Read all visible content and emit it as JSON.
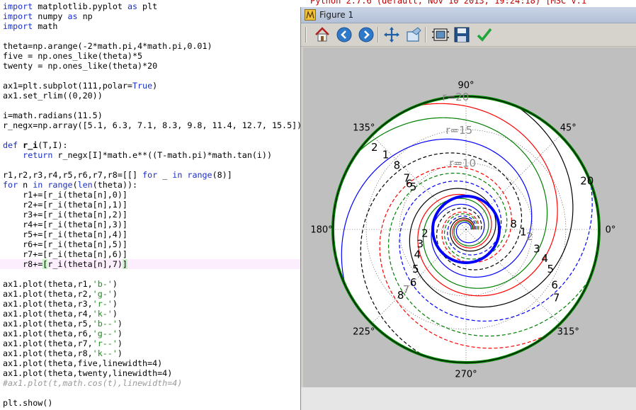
{
  "editor": {
    "lines": [
      {
        "t": "import matplotlib.pyplot as plt",
        "kind": "import"
      },
      {
        "t": "import numpy as np",
        "kind": "import"
      },
      {
        "t": "import math",
        "kind": "import"
      },
      {
        "t": "",
        "kind": "plain"
      },
      {
        "t": "theta=np.arange(-2*math.pi,4*math.pi,0.01)",
        "kind": "plain"
      },
      {
        "t": "five = np.ones_like(theta)*5",
        "kind": "plain"
      },
      {
        "t": "twenty = np.ones_like(theta)*20",
        "kind": "plain"
      },
      {
        "t": "",
        "kind": "plain"
      },
      {
        "t": "ax1=plt.subplot(111,polar=True)",
        "kind": "polar"
      },
      {
        "t": "ax1.set_rlim((0,20))",
        "kind": "plain"
      },
      {
        "t": "",
        "kind": "plain"
      },
      {
        "t": "i=math.radians(11.5)",
        "kind": "plain"
      },
      {
        "t": "r_negx=np.array([5.1, 6.3, 7.1, 8.3, 9.8, 11.4, 12.7, 15.5])",
        "kind": "plain"
      },
      {
        "t": "",
        "kind": "plain"
      },
      {
        "t": "def r_i(T,I):",
        "kind": "def"
      },
      {
        "t": "    return r_negx[I]*math.e**((T-math.pi)*math.tan(i))",
        "kind": "return"
      },
      {
        "t": "",
        "kind": "plain"
      },
      {
        "t": "r1,r2,r3,r4,r5,r6,r7,r8=[[] for _ in range(8)]",
        "kind": "comp"
      },
      {
        "t": "for n in range(len(theta)):",
        "kind": "for"
      },
      {
        "t": "    r1+=[r_i(theta[n],0)]",
        "kind": "plain"
      },
      {
        "t": "    r2+=[r_i(theta[n],1)]",
        "kind": "plain"
      },
      {
        "t": "    r3+=[r_i(theta[n],2)]",
        "kind": "plain"
      },
      {
        "t": "    r4+=[r_i(theta[n],3)]",
        "kind": "plain"
      },
      {
        "t": "    r5+=[r_i(theta[n],4)]",
        "kind": "plain"
      },
      {
        "t": "    r6+=[r_i(theta[n],5)]",
        "kind": "plain"
      },
      {
        "t": "    r7+=[r_i(theta[n],6)]",
        "kind": "plain"
      },
      {
        "t": "    r8+=[r_i(theta[n],7)]",
        "kind": "current"
      },
      {
        "t": "",
        "kind": "plain"
      },
      {
        "t": "ax1.plot(theta,r1,'b-')",
        "kind": "plot"
      },
      {
        "t": "ax1.plot(theta,r2,'g-')",
        "kind": "plot"
      },
      {
        "t": "ax1.plot(theta,r3,'r-')",
        "kind": "plot"
      },
      {
        "t": "ax1.plot(theta,r4,'k-')",
        "kind": "plot"
      },
      {
        "t": "ax1.plot(theta,r5,'b--')",
        "kind": "plot"
      },
      {
        "t": "ax1.plot(theta,r6,'g--')",
        "kind": "plot"
      },
      {
        "t": "ax1.plot(theta,r7,'r--')",
        "kind": "plot"
      },
      {
        "t": "ax1.plot(theta,r8,'k--')",
        "kind": "plot"
      },
      {
        "t": "ax1.plot(theta,five,linewidth=4)",
        "kind": "plain"
      },
      {
        "t": "ax1.plot(theta,twenty,linewidth=4)",
        "kind": "plain"
      },
      {
        "t": "#ax1.plot(t,math.cos(t),linewidth=4)",
        "kind": "comment"
      },
      {
        "t": "",
        "kind": "plain"
      },
      {
        "t": "plt.show()",
        "kind": "plain"
      }
    ]
  },
  "shell_strip_text": "Python 2.7.6 (default, Nov 10 2013, 19:24:18) [MSC v.1",
  "figure_window": {
    "title": "Figure 1",
    "toolbar": [
      {
        "name": "home-button",
        "icon": "home-icon"
      },
      {
        "name": "back-button",
        "icon": "back-arrow-icon"
      },
      {
        "name": "forward-button",
        "icon": "forward-arrow-icon"
      },
      {
        "name": "pan-button",
        "icon": "pan-icon"
      },
      {
        "name": "zoom-button",
        "icon": "zoom-rect-icon"
      },
      {
        "name": "configure-subplots-button",
        "icon": "subplots-icon"
      },
      {
        "name": "save-button",
        "icon": "save-icon"
      },
      {
        "name": "edit-axes-button",
        "icon": "checkmark-icon"
      }
    ]
  },
  "chart_data": {
    "type": "line",
    "projection": "polar",
    "rlim": [
      0,
      20
    ],
    "radial_ticks": [
      {
        "r": 10,
        "label": "r=10"
      },
      {
        "r": 15,
        "label": "r=15"
      },
      {
        "r": 20,
        "label": "r=20"
      }
    ],
    "angle_labels": [
      "0°",
      "45°",
      "90°",
      "135°",
      "180°",
      "225°",
      "270°",
      "315°"
    ],
    "grid": true,
    "theta_range": [
      -6.2832,
      12.5664
    ],
    "pitch_deg": 11.5,
    "series": [
      {
        "style": "b-",
        "color": "#0000ff",
        "dash": false,
        "r_negx": 5.1
      },
      {
        "style": "g-",
        "color": "#008000",
        "dash": false,
        "r_negx": 6.3
      },
      {
        "style": "r-",
        "color": "#ff0000",
        "dash": false,
        "r_negx": 7.1
      },
      {
        "style": "k-",
        "color": "#000000",
        "dash": false,
        "r_negx": 8.3
      },
      {
        "style": "b--",
        "color": "#0000ff",
        "dash": true,
        "r_negx": 9.8
      },
      {
        "style": "g--",
        "color": "#008000",
        "dash": true,
        "r_negx": 11.4
      },
      {
        "style": "r--",
        "color": "#ff0000",
        "dash": true,
        "r_negx": 12.7
      },
      {
        "style": "k--",
        "color": "#000000",
        "dash": true,
        "r_negx": 15.5
      }
    ],
    "circles": [
      {
        "r": 5,
        "color": "#0000ff",
        "width": 4
      },
      {
        "r": 20,
        "color": "#008000",
        "width": 4
      }
    ],
    "annotations": [
      {
        "text": "2",
        "angle_deg": 138,
        "r": 18.5,
        "color": "#000000"
      },
      {
        "text": "1",
        "angle_deg": 137,
        "r": 16.5,
        "color": "#000000"
      },
      {
        "text": "8",
        "angle_deg": 137,
        "r": 14.2,
        "color": "#000000"
      },
      {
        "text": "7",
        "angle_deg": 139,
        "r": 11.8,
        "color": "#000000"
      },
      {
        "text": "6",
        "angle_deg": 141,
        "r": 11.0,
        "color": "#000000"
      },
      {
        "text": "5",
        "angle_deg": 141,
        "r": 10.2,
        "color": "#000000"
      },
      {
        "text": "8",
        "angle_deg": 7,
        "r": 7.2,
        "color": "#000000"
      },
      {
        "text": "1",
        "angle_deg": -2,
        "r": 8.6,
        "color": "#000000"
      },
      {
        "text": "2",
        "angle_deg": -6,
        "r": 9.6,
        "color": "#808080"
      },
      {
        "text": "2",
        "angle_deg": 185,
        "r": 6.2,
        "color": "#000000"
      },
      {
        "text": "3",
        "angle_deg": 197,
        "r": 7.2,
        "color": "#000000"
      },
      {
        "text": "4",
        "angle_deg": 207,
        "r": 8.2,
        "color": "#000000"
      },
      {
        "text": "5",
        "angle_deg": 218,
        "r": 9.6,
        "color": "#000000"
      },
      {
        "text": "6",
        "angle_deg": 225,
        "r": 11.2,
        "color": "#000000"
      },
      {
        "text": "7",
        "angle_deg": 225,
        "r": 12.7,
        "color": "#808080"
      },
      {
        "text": "8",
        "angle_deg": 225,
        "r": 13.9,
        "color": "#000000"
      },
      {
        "text": "3",
        "angle_deg": -15,
        "r": 11.0,
        "color": "#000000"
      },
      {
        "text": "4",
        "angle_deg": -20,
        "r": 12.6,
        "color": "#000000"
      },
      {
        "text": "5",
        "angle_deg": -25,
        "r": 14.0,
        "color": "#000000"
      },
      {
        "text": "6",
        "angle_deg": -32,
        "r": 15.7,
        "color": "#000000"
      },
      {
        "text": "7",
        "angle_deg": -37,
        "r": 17.0,
        "color": "#000000"
      },
      {
        "text": "20",
        "angle_deg": 22,
        "r": 19.6,
        "color": "#000000"
      }
    ]
  }
}
